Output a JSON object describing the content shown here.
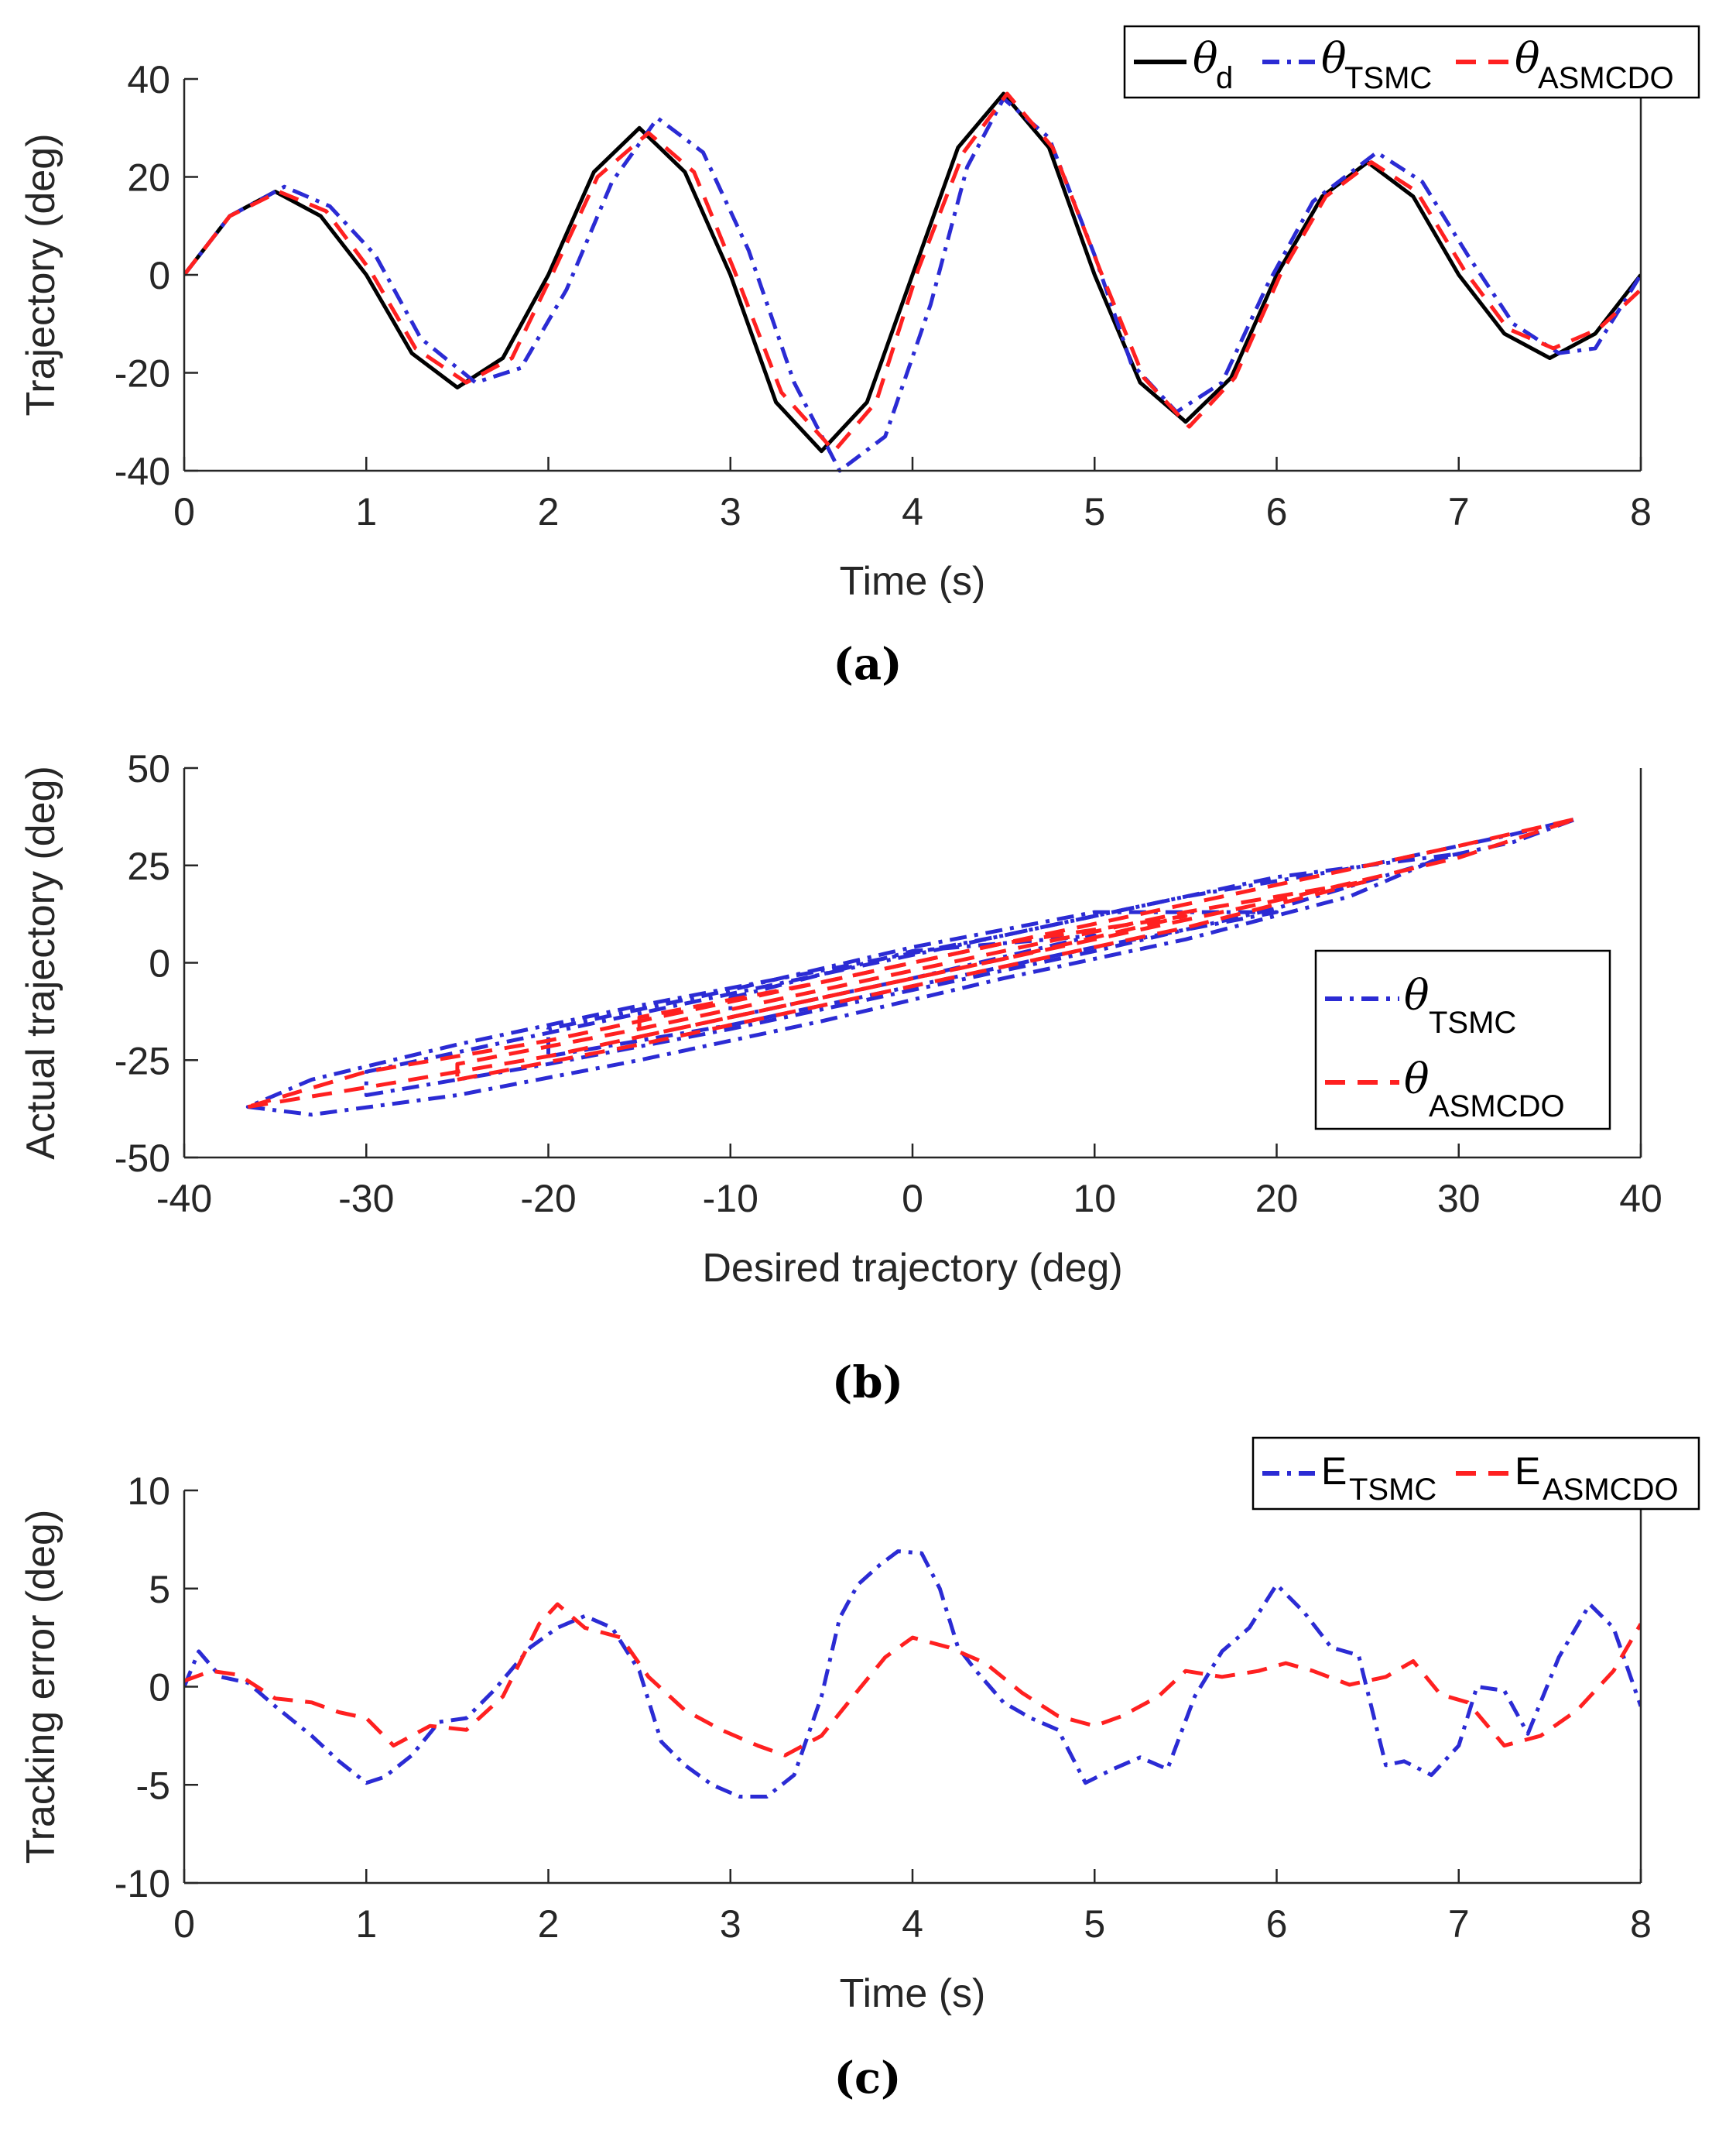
{
  "chart_data": [
    {
      "id": "a",
      "type": "line",
      "caption": "(a)",
      "xlabel": "Time (s)",
      "ylabel": "Trajectory (deg)",
      "xlim": [
        0,
        8
      ],
      "ylim": [
        -40,
        40
      ],
      "xticks": [
        "0",
        "1",
        "2",
        "3",
        "4",
        "5",
        "6",
        "7",
        "8"
      ],
      "yticks": [
        "-40",
        "-20",
        "0",
        "20",
        "40"
      ],
      "legend": {
        "position": "top-right",
        "orientation": "horizontal"
      },
      "series": [
        {
          "name": "θd",
          "symbol": "θ",
          "subscript": "d",
          "color": "#000000",
          "style": "solid",
          "x": [
            0,
            0.25,
            0.5,
            0.75,
            1,
            1.25,
            1.5,
            1.75,
            2,
            2.25,
            2.5,
            2.75,
            3,
            3.25,
            3.5,
            3.75,
            4,
            4.25,
            4.5,
            4.75,
            5,
            5.25,
            5.5,
            5.75,
            6,
            6.25,
            6.5,
            6.75,
            7,
            7.25,
            7.5,
            7.75,
            8
          ],
          "y": [
            0,
            12,
            17,
            12,
            0,
            -16,
            -23,
            -17,
            0,
            21,
            30,
            21,
            0,
            -26,
            -36,
            -26,
            0,
            26,
            37,
            26,
            0,
            -22,
            -30,
            -21,
            0,
            16,
            23,
            16,
            0,
            -12,
            -17,
            -12,
            0
          ]
        },
        {
          "name": "θTSMC",
          "symbol": "θ",
          "subscript": "TSMC",
          "color": "#2b2bd4",
          "style": "dashdot",
          "x": [
            0,
            0.25,
            0.55,
            0.8,
            1.05,
            1.3,
            1.6,
            1.85,
            2.1,
            2.35,
            2.6,
            2.85,
            3.1,
            3.35,
            3.6,
            3.85,
            4.1,
            4.3,
            4.5,
            4.75,
            5.0,
            5.2,
            5.45,
            5.7,
            5.95,
            6.2,
            6.55,
            6.8,
            7.05,
            7.3,
            7.55,
            7.75,
            8
          ],
          "y": [
            0,
            12,
            18,
            14,
            4,
            -13,
            -22,
            -19,
            -3,
            19,
            32,
            25,
            5,
            -22,
            -40,
            -33,
            -6,
            22,
            36,
            28,
            4,
            -18,
            -28,
            -22,
            -2,
            15,
            25,
            19,
            4,
            -10,
            -16,
            -15,
            0
          ]
        },
        {
          "name": "θASMCDO",
          "symbol": "θ",
          "subscript": "ASMCDO",
          "color": "#ff2020",
          "style": "dashed",
          "x": [
            0,
            0.25,
            0.52,
            0.78,
            1.02,
            1.27,
            1.55,
            1.8,
            2.02,
            2.27,
            2.55,
            2.8,
            3.02,
            3.28,
            3.57,
            3.8,
            4.03,
            4.28,
            4.52,
            4.77,
            5.03,
            5.27,
            5.52,
            5.77,
            6.02,
            6.27,
            6.52,
            6.77,
            7.03,
            7.27,
            7.52,
            7.77,
            8
          ],
          "y": [
            0,
            12,
            17,
            13,
            1,
            -15,
            -22,
            -17,
            0,
            20,
            29,
            21,
            1,
            -24,
            -36,
            -26,
            1,
            25,
            37,
            26,
            1,
            -21,
            -31,
            -21,
            0,
            16,
            23,
            17,
            1,
            -11,
            -15,
            -11,
            -3
          ]
        }
      ]
    },
    {
      "id": "b",
      "type": "line",
      "caption": "(b)",
      "xlabel": "Desired trajectory (deg)",
      "ylabel": "Actual trajectory  (deg)",
      "xlim": [
        -40,
        40
      ],
      "ylim": [
        -50,
        50
      ],
      "xticks": [
        "-40",
        "-30",
        "-20",
        "-10",
        "0",
        "10",
        "20",
        "30",
        "40"
      ],
      "yticks": [
        "-50",
        "-25",
        "0",
        "25",
        "50"
      ],
      "legend": {
        "position": "right",
        "orientation": "vertical"
      },
      "series": [
        {
          "name": "θTSMC",
          "symbol": "θ",
          "subscript": "TSMC",
          "color": "#2b2bd4",
          "style": "dashdot",
          "loops": [
            {
              "x": [
                -36.5,
                -33,
                -25,
                -15,
                -5,
                5,
                15,
                24,
                29,
                33,
                36.5,
                33,
                25,
                15,
                5,
                -5,
                -15,
                -25,
                -33,
                -36.5
              ],
              "y": [
                -37,
                -39,
                -34,
                -25,
                -15,
                -4,
                6,
                17,
                27,
                31,
                37,
                33,
                25,
                17,
                7,
                -2,
                -11,
                -21,
                -30,
                -37
              ]
            },
            {
              "x": [
                -30,
                -20,
                -10,
                0,
                10,
                20,
                30,
                20,
                10,
                0,
                -10,
                -20,
                -30
              ],
              "y": [
                -34,
                -26,
                -17,
                -7,
                3,
                14,
                28,
                22,
                12,
                2,
                -8,
                -18,
                -28
              ]
            },
            {
              "x": [
                -20,
                -10,
                0,
                10,
                20,
                10,
                0,
                -10,
                -20
              ],
              "y": [
                -24,
                -16,
                -6,
                4,
                13,
                13,
                4,
                -7,
                -17
              ]
            },
            {
              "x": [
                -10,
                0,
                10,
                0,
                -10
              ],
              "y": [
                -14,
                -4,
                7,
                3,
                -9
              ]
            }
          ]
        },
        {
          "name": "θASMCDO",
          "symbol": "θ",
          "subscript": "ASMCDO",
          "color": "#ff2020",
          "style": "dashed",
          "loops": [
            {
              "x": [
                -36.5,
                -30,
                -20,
                -10,
                0,
                10,
                20,
                30,
                36.5,
                30,
                20,
                10,
                0,
                -10,
                -20,
                -30,
                -36.5
              ],
              "y": [
                -37,
                -32,
                -24,
                -14,
                -4,
                6,
                16,
                27,
                37,
                30,
                20,
                10,
                0,
                -10,
                -20,
                -28,
                -37
              ]
            },
            {
              "x": [
                -25,
                -15,
                -5,
                5,
                15,
                25,
                15,
                5,
                -5,
                -15,
                -25
              ],
              "y": [
                -30,
                -21,
                -11,
                -1,
                9,
                21,
                13,
                3,
                -7,
                -17,
                -26
              ]
            },
            {
              "x": [
                -15,
                -5,
                5,
                15,
                5,
                -5,
                -15
              ],
              "y": [
                -19,
                -9,
                1,
                12,
                5,
                -5,
                -14
              ]
            }
          ]
        }
      ]
    },
    {
      "id": "c",
      "type": "line",
      "caption": "(c)",
      "xlabel": "Time (s)",
      "ylabel": "Tracking error (deg)",
      "xlim": [
        0,
        8
      ],
      "ylim": [
        -10,
        10
      ],
      "xticks": [
        "0",
        "1",
        "2",
        "3",
        "4",
        "5",
        "6",
        "7",
        "8"
      ],
      "yticks": [
        "-10",
        "-5",
        "0",
        "5",
        "10"
      ],
      "legend": {
        "position": "top-right",
        "orientation": "horizontal"
      },
      "series": [
        {
          "name": "ETSMC",
          "symbol": "E",
          "subscript": "TSMC",
          "color": "#2b2bd4",
          "style": "dashdot",
          "x": [
            0,
            0.08,
            0.2,
            0.35,
            0.5,
            0.7,
            0.85,
            1.0,
            1.1,
            1.25,
            1.4,
            1.55,
            1.7,
            1.9,
            2.05,
            2.2,
            2.35,
            2.5,
            2.62,
            2.75,
            2.9,
            3.05,
            3.2,
            3.35,
            3.5,
            3.6,
            3.7,
            3.82,
            3.92,
            4.05,
            4.15,
            4.25,
            4.35,
            4.5,
            4.65,
            4.8,
            4.95,
            5.1,
            5.25,
            5.4,
            5.55,
            5.7,
            5.85,
            6.0,
            6.15,
            6.3,
            6.45,
            6.6,
            6.7,
            6.85,
            7.0,
            7.1,
            7.25,
            7.38,
            7.55,
            7.72,
            7.85,
            8.0
          ],
          "y": [
            0,
            1.8,
            0.5,
            0.2,
            -1.0,
            -2.5,
            -3.8,
            -4.9,
            -4.6,
            -3.5,
            -1.8,
            -1.6,
            -0.2,
            2.0,
            3.0,
            3.6,
            3.0,
            0.8,
            -2.8,
            -4.0,
            -5.0,
            -5.6,
            -5.6,
            -4.5,
            -0.5,
            3.5,
            5.2,
            6.2,
            6.9,
            6.8,
            5.0,
            2.0,
            0.8,
            -0.8,
            -1.6,
            -2.2,
            -4.9,
            -4.2,
            -3.6,
            -4.2,
            -0.5,
            1.8,
            3.0,
            5.2,
            3.8,
            2.0,
            1.6,
            -4.0,
            -3.8,
            -4.5,
            -3.0,
            0.0,
            -0.2,
            -2.4,
            1.5,
            4.2,
            3.0,
            -1.0
          ]
        },
        {
          "name": "EASMCDO",
          "symbol": "E",
          "subscript": "ASMCDO",
          "color": "#ff2020",
          "style": "dashed",
          "x": [
            0,
            0.15,
            0.3,
            0.5,
            0.7,
            0.85,
            1.0,
            1.15,
            1.35,
            1.55,
            1.75,
            1.95,
            2.05,
            2.2,
            2.4,
            2.55,
            2.75,
            2.95,
            3.15,
            3.3,
            3.5,
            3.7,
            3.85,
            4.0,
            4.2,
            4.4,
            4.6,
            4.8,
            5.0,
            5.15,
            5.35,
            5.5,
            5.7,
            5.9,
            6.05,
            6.2,
            6.4,
            6.6,
            6.75,
            6.9,
            7.05,
            7.25,
            7.45,
            7.65,
            7.85,
            8.0
          ],
          "y": [
            0.3,
            0.8,
            0.6,
            -0.6,
            -0.8,
            -1.3,
            -1.6,
            -3.0,
            -2.0,
            -2.2,
            -0.5,
            3.2,
            4.2,
            3.0,
            2.5,
            0.5,
            -1.2,
            -2.2,
            -3.0,
            -3.5,
            -2.5,
            -0.2,
            1.5,
            2.5,
            2.0,
            1.2,
            -0.3,
            -1.5,
            -2.0,
            -1.5,
            -0.5,
            0.8,
            0.5,
            0.8,
            1.2,
            0.8,
            0.1,
            0.5,
            1.3,
            -0.4,
            -0.8,
            -3.0,
            -2.5,
            -1.2,
            0.8,
            3.2
          ]
        }
      ]
    }
  ]
}
